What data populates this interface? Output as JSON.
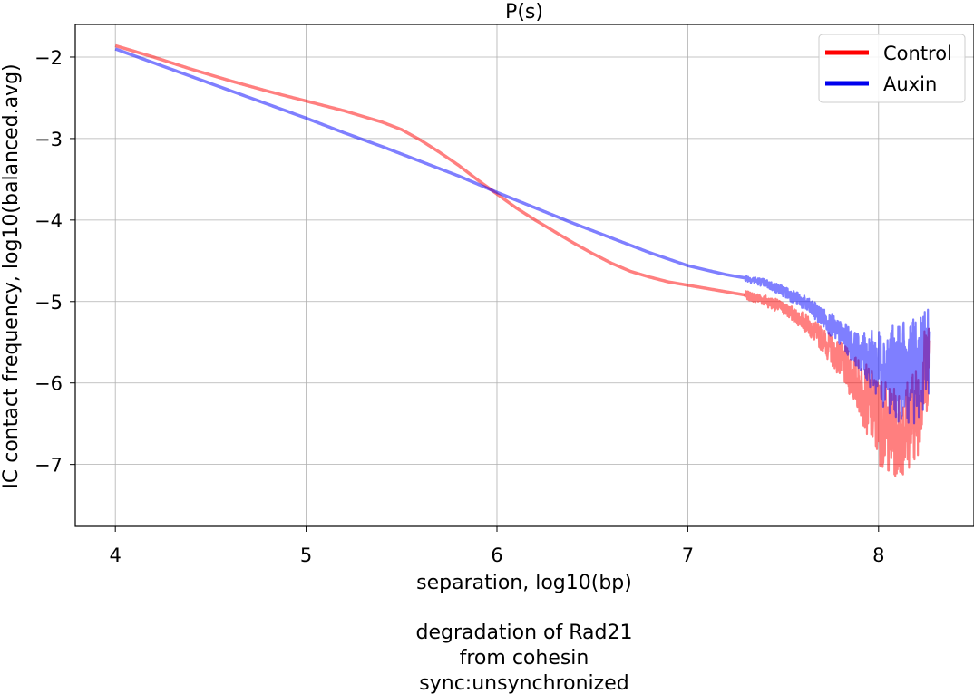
{
  "chart_data": {
    "type": "line",
    "title": "P(s)",
    "xlabel": "separation, log10(bp)",
    "ylabel": "IC contact frequency, log10(balanced.avg)",
    "caption": [
      "degradation of Rad21",
      "from cohesin",
      "sync:unsynchronized"
    ],
    "xlim": [
      3.79,
      8.5
    ],
    "ylim": [
      -7.76,
      -1.6
    ],
    "x_ticks": [
      4,
      5,
      6,
      7,
      8
    ],
    "y_ticks": [
      -2,
      -3,
      -4,
      -5,
      -6,
      -7
    ],
    "x_tick_labels": [
      "4",
      "5",
      "6",
      "7",
      "8"
    ],
    "y_tick_labels": [
      "−2",
      "−3",
      "−4",
      "−5",
      "−6",
      "−7"
    ],
    "grid": true,
    "legend_position": "top-right",
    "noise_start": 7.3,
    "series": [
      {
        "name": "Control",
        "color": "#ff0000",
        "legend_color": "#ff0000",
        "opacity": 0.5,
        "x": [
          4.0,
          4.2,
          4.4,
          4.6,
          4.8,
          5.0,
          5.2,
          5.4,
          5.5,
          5.6,
          5.7,
          5.8,
          5.9,
          6.0,
          6.1,
          6.2,
          6.3,
          6.4,
          6.5,
          6.6,
          6.7,
          6.8,
          6.9,
          7.0,
          7.1,
          7.2,
          7.3,
          7.4,
          7.5,
          7.6,
          7.7,
          7.8,
          7.9,
          8.0,
          8.1,
          8.2,
          8.27
        ],
        "y": [
          -1.86,
          -2.0,
          -2.15,
          -2.29,
          -2.42,
          -2.54,
          -2.66,
          -2.8,
          -2.89,
          -3.02,
          -3.17,
          -3.33,
          -3.51,
          -3.68,
          -3.85,
          -4.0,
          -4.14,
          -4.28,
          -4.41,
          -4.53,
          -4.63,
          -4.7,
          -4.76,
          -4.8,
          -4.84,
          -4.88,
          -4.92,
          -4.98,
          -5.08,
          -5.23,
          -5.45,
          -5.72,
          -6.05,
          -6.45,
          -6.65,
          -6.35,
          -5.6
        ],
        "noise_amp": [
          0,
          0,
          0,
          0,
          0,
          0,
          0,
          0,
          0,
          0,
          0,
          0,
          0,
          0,
          0,
          0,
          0,
          0,
          0,
          0,
          0,
          0,
          0,
          0,
          0,
          0,
          0.05,
          0.07,
          0.08,
          0.1,
          0.15,
          0.22,
          0.35,
          0.55,
          0.55,
          0.6,
          0.6
        ]
      },
      {
        "name": "Auxin",
        "color": "#0000ff",
        "legend_color": "#0000ee",
        "opacity": 0.5,
        "x": [
          4.0,
          4.2,
          4.4,
          4.6,
          4.8,
          5.0,
          5.2,
          5.4,
          5.6,
          5.8,
          6.0,
          6.2,
          6.4,
          6.6,
          6.8,
          7.0,
          7.2,
          7.3,
          7.4,
          7.5,
          7.6,
          7.7,
          7.8,
          7.9,
          8.0,
          8.1,
          8.2,
          8.27
        ],
        "y": [
          -1.9,
          -2.07,
          -2.24,
          -2.41,
          -2.58,
          -2.75,
          -2.93,
          -3.1,
          -3.28,
          -3.46,
          -3.66,
          -3.85,
          -4.04,
          -4.22,
          -4.4,
          -4.56,
          -4.67,
          -4.71,
          -4.77,
          -4.87,
          -5.0,
          -5.18,
          -5.4,
          -5.62,
          -5.78,
          -5.88,
          -5.85,
          -5.6
        ],
        "noise_amp": [
          0,
          0,
          0,
          0,
          0,
          0,
          0,
          0,
          0,
          0,
          0,
          0,
          0,
          0,
          0,
          0,
          0,
          0.04,
          0.05,
          0.07,
          0.09,
          0.12,
          0.16,
          0.22,
          0.45,
          0.6,
          0.65,
          0.6
        ]
      }
    ]
  }
}
